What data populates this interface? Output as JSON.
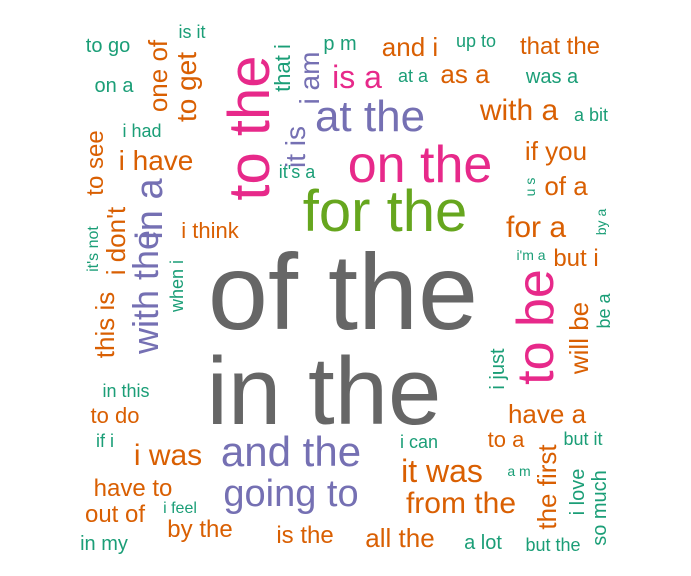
{
  "palette": {
    "gray": "#666666",
    "green": "#1b9e77",
    "orange": "#d95f02",
    "purple": "#7570b3",
    "pink": "#e7298a",
    "lime": "#66a61e"
  },
  "words": [
    {
      "text": "of the",
      "color": "gray",
      "rotated": false
    },
    {
      "text": "in the",
      "color": "gray",
      "rotated": false
    },
    {
      "text": "for the",
      "color": "lime",
      "rotated": false
    },
    {
      "text": "on the",
      "color": "pink",
      "rotated": false
    },
    {
      "text": "to the",
      "color": "pink",
      "rotated": true
    },
    {
      "text": "to be",
      "color": "pink",
      "rotated": true
    },
    {
      "text": "at the",
      "color": "purple",
      "rotated": false
    },
    {
      "text": "and the",
      "color": "purple",
      "rotated": false
    },
    {
      "text": "going to",
      "color": "purple",
      "rotated": false
    },
    {
      "text": "with the",
      "color": "purple",
      "rotated": true
    },
    {
      "text": "in a",
      "color": "purple",
      "rotated": true
    },
    {
      "text": "is a",
      "color": "pink",
      "rotated": false
    },
    {
      "text": "it is",
      "color": "purple",
      "rotated": true
    },
    {
      "text": "i am",
      "color": "purple",
      "rotated": true
    },
    {
      "text": "it was",
      "color": "orange",
      "rotated": false
    },
    {
      "text": "from the",
      "color": "orange",
      "rotated": false
    },
    {
      "text": "with a",
      "color": "orange",
      "rotated": false
    },
    {
      "text": "for a",
      "color": "orange",
      "rotated": false
    },
    {
      "text": "have a",
      "color": "orange",
      "rotated": false
    },
    {
      "text": "i have",
      "color": "orange",
      "rotated": false
    },
    {
      "text": "i was",
      "color": "orange",
      "rotated": false
    },
    {
      "text": "that the",
      "color": "orange",
      "rotated": false
    },
    {
      "text": "and i",
      "color": "orange",
      "rotated": false
    },
    {
      "text": "as a",
      "color": "orange",
      "rotated": false
    },
    {
      "text": "if you",
      "color": "orange",
      "rotated": false
    },
    {
      "text": "of a",
      "color": "orange",
      "rotated": false
    },
    {
      "text": "will be",
      "color": "orange",
      "rotated": true
    },
    {
      "text": "this is",
      "color": "orange",
      "rotated": true
    },
    {
      "text": "i don't",
      "color": "orange",
      "rotated": true
    },
    {
      "text": "to get",
      "color": "orange",
      "rotated": true
    },
    {
      "text": "one of",
      "color": "orange",
      "rotated": true
    },
    {
      "text": "to see",
      "color": "orange",
      "rotated": true
    },
    {
      "text": "the first",
      "color": "orange",
      "rotated": true
    },
    {
      "text": "have to",
      "color": "orange",
      "rotated": false
    },
    {
      "text": "out of",
      "color": "orange",
      "rotated": false
    },
    {
      "text": "by the",
      "color": "orange",
      "rotated": false
    },
    {
      "text": "is the",
      "color": "orange",
      "rotated": false
    },
    {
      "text": "all the",
      "color": "orange",
      "rotated": false
    },
    {
      "text": "but i",
      "color": "orange",
      "rotated": false
    },
    {
      "text": "to do",
      "color": "orange",
      "rotated": false
    },
    {
      "text": "i think",
      "color": "orange",
      "rotated": false
    },
    {
      "text": "to a",
      "color": "orange",
      "rotated": false
    },
    {
      "text": "i love",
      "color": "green",
      "rotated": true
    },
    {
      "text": "so much",
      "color": "green",
      "rotated": true
    },
    {
      "text": "i just",
      "color": "green",
      "rotated": true
    },
    {
      "text": "that i",
      "color": "green",
      "rotated": true
    },
    {
      "text": "to go",
      "color": "green",
      "rotated": false
    },
    {
      "text": "on a",
      "color": "green",
      "rotated": false
    },
    {
      "text": "was a",
      "color": "green",
      "rotated": false
    },
    {
      "text": "up to",
      "color": "green",
      "rotated": false
    },
    {
      "text": "p m",
      "color": "green",
      "rotated": false
    },
    {
      "text": "at a",
      "color": "green",
      "rotated": false
    },
    {
      "text": "is it",
      "color": "green",
      "rotated": false
    },
    {
      "text": "i had",
      "color": "green",
      "rotated": false
    },
    {
      "text": "a bit",
      "color": "green",
      "rotated": false
    },
    {
      "text": "it's a",
      "color": "green",
      "rotated": false
    },
    {
      "text": "u s",
      "color": "green",
      "rotated": true
    },
    {
      "text": "by a",
      "color": "green",
      "rotated": true
    },
    {
      "text": "i'm a",
      "color": "green",
      "rotated": false
    },
    {
      "text": "be a",
      "color": "green",
      "rotated": true
    },
    {
      "text": "it's not",
      "color": "green",
      "rotated": true
    },
    {
      "text": "when i",
      "color": "green",
      "rotated": true
    },
    {
      "text": "in this",
      "color": "green",
      "rotated": false
    },
    {
      "text": "if i",
      "color": "green",
      "rotated": false
    },
    {
      "text": "i can",
      "color": "green",
      "rotated": false
    },
    {
      "text": "but it",
      "color": "green",
      "rotated": false
    },
    {
      "text": "a m",
      "color": "green",
      "rotated": false
    },
    {
      "text": "i feel",
      "color": "green",
      "rotated": false
    },
    {
      "text": "in my",
      "color": "green",
      "rotated": false
    },
    {
      "text": "a lot",
      "color": "green",
      "rotated": false
    },
    {
      "text": "but the",
      "color": "green",
      "rotated": false
    }
  ]
}
